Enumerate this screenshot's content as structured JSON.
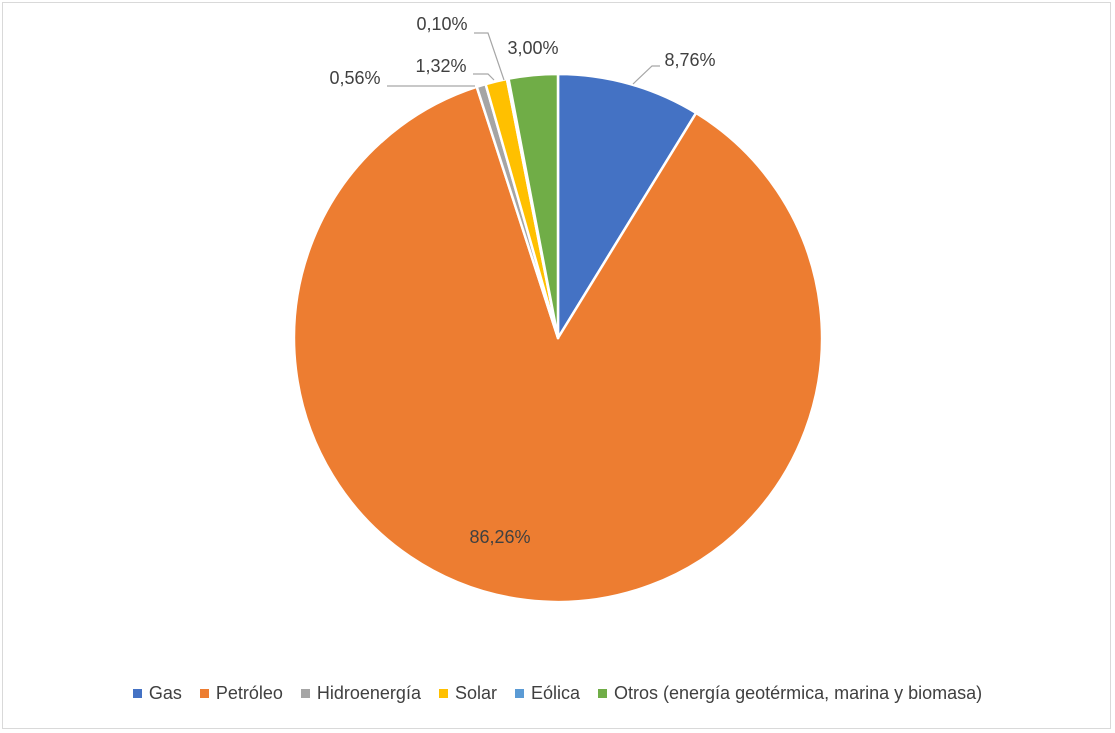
{
  "chart_data": {
    "type": "pie",
    "title": "",
    "labels": [
      "Gas",
      "Petróleo",
      "Hidroenergía",
      "Solar",
      "Eólica",
      "Otros (energía geotérmica, marina y biomasa)"
    ],
    "values": [
      8.76,
      86.26,
      0.56,
      1.32,
      0.1,
      3.0
    ],
    "data_labels": [
      "8,76%",
      "86,26%",
      "0,56%",
      "1,32%",
      "0,10%",
      "3,00%"
    ],
    "colors": [
      "#4472C4",
      "#ED7D31",
      "#A5A5A5",
      "#FFC000",
      "#5B9BD5",
      "#70AD47"
    ],
    "start_angle_deg": 0,
    "direction": "clockwise",
    "legend_position": "bottom"
  }
}
